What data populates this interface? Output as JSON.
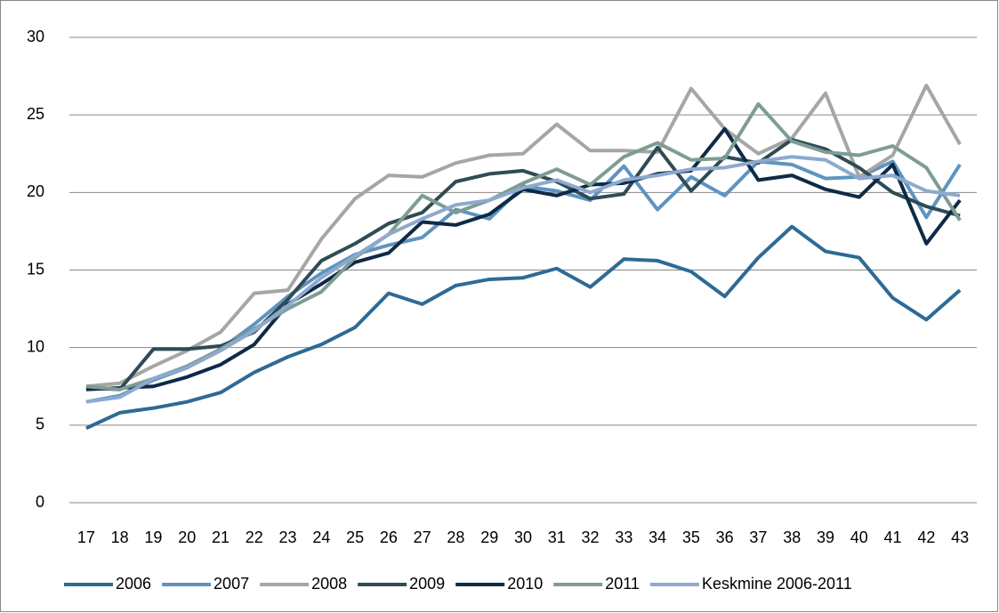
{
  "chart_data": {
    "type": "line",
    "categories": [
      "17",
      "18",
      "19",
      "20",
      "21",
      "22",
      "23",
      "24",
      "25",
      "26",
      "27",
      "28",
      "29",
      "30",
      "31",
      "32",
      "33",
      "34",
      "35",
      "36",
      "37",
      "38",
      "39",
      "40",
      "41",
      "42",
      "43"
    ],
    "series": [
      {
        "name": "2006",
        "color": "#2e6a94",
        "values": [
          4.8,
          5.8,
          6.1,
          6.5,
          7.1,
          8.4,
          9.4,
          10.2,
          11.3,
          13.5,
          12.8,
          14.0,
          14.4,
          14.5,
          15.1,
          13.9,
          15.7,
          15.6,
          14.9,
          13.3,
          15.8,
          17.8,
          16.2,
          15.8,
          13.2,
          11.8,
          13.7
        ]
      },
      {
        "name": "2007",
        "color": "#5e94c0",
        "values": [
          6.5,
          6.9,
          7.9,
          8.7,
          9.9,
          11.5,
          13.3,
          14.8,
          16.0,
          16.6,
          17.1,
          18.9,
          18.3,
          20.4,
          20.1,
          19.5,
          21.7,
          18.9,
          21.0,
          19.8,
          22.0,
          21.8,
          20.9,
          21.0,
          22.0,
          18.4,
          21.8
        ]
      },
      {
        "name": "2008",
        "color": "#a6a6a6",
        "values": [
          7.5,
          7.7,
          8.8,
          9.8,
          11.0,
          13.5,
          13.7,
          17.0,
          19.6,
          21.1,
          21.0,
          21.9,
          22.4,
          22.5,
          24.4,
          22.7,
          22.7,
          22.6,
          26.7,
          24.1,
          22.5,
          23.5,
          26.4,
          21.0,
          22.4,
          26.9,
          23.1
        ]
      },
      {
        "name": "2009",
        "color": "#2f4b55",
        "values": [
          7.4,
          7.3,
          9.9,
          9.9,
          10.1,
          11.0,
          13.1,
          15.6,
          16.7,
          18.0,
          18.7,
          20.7,
          21.2,
          21.4,
          20.7,
          19.6,
          19.9,
          22.9,
          20.1,
          22.3,
          21.9,
          23.4,
          22.8,
          21.6,
          20.0,
          19.1,
          18.5
        ]
      },
      {
        "name": "2010",
        "color": "#0e2a47",
        "values": [
          7.3,
          7.4,
          7.5,
          8.1,
          8.9,
          10.2,
          12.8,
          14.1,
          15.5,
          16.1,
          18.1,
          17.9,
          18.6,
          20.2,
          19.8,
          20.5,
          20.6,
          21.2,
          21.4,
          24.1,
          20.8,
          21.1,
          20.2,
          19.7,
          21.8,
          16.7,
          19.5
        ]
      },
      {
        "name": "2011",
        "color": "#7f9c93",
        "values": [
          7.5,
          7.3,
          8.0,
          8.8,
          9.9,
          11.2,
          12.5,
          13.6,
          15.8,
          17.3,
          19.8,
          18.7,
          19.5,
          20.6,
          21.5,
          20.5,
          22.3,
          23.2,
          22.1,
          22.2,
          25.7,
          23.3,
          22.6,
          22.4,
          23.0,
          21.6,
          18.2
        ]
      },
      {
        "name": "Keskmine 2006-2011",
        "color": "#8ea9cf",
        "values": [
          6.5,
          6.8,
          8.0,
          8.7,
          9.8,
          11.1,
          12.7,
          14.5,
          15.9,
          17.3,
          18.3,
          19.2,
          19.5,
          20.3,
          20.8,
          20.0,
          20.8,
          21.1,
          21.5,
          21.6,
          22.0,
          22.3,
          22.1,
          20.9,
          21.1,
          20.1,
          19.8
        ]
      }
    ],
    "ylim": [
      0,
      30
    ],
    "yticks": [
      0,
      5,
      10,
      15,
      20,
      25,
      30
    ],
    "grid": true,
    "legend": "bottom"
  }
}
